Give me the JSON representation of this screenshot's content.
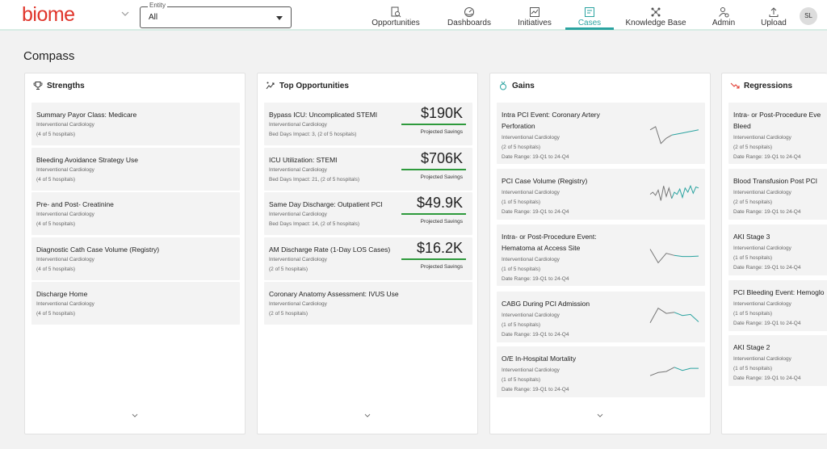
{
  "brand": {
    "logo_text": "biome",
    "color": "#e0352b",
    "accent": "#2aa3a0"
  },
  "entity": {
    "legend": "Entity",
    "value": "All"
  },
  "nav": [
    {
      "label": "Opportunities",
      "icon": "document-search-icon"
    },
    {
      "label": "Dashboards",
      "icon": "gauge-icon"
    },
    {
      "label": "Initiatives",
      "icon": "chart-icon"
    },
    {
      "label": "Cases",
      "icon": "case-icon",
      "active": true
    },
    {
      "label": "Knowledge Base",
      "icon": "network-icon"
    },
    {
      "label": "Admin",
      "icon": "user-gear-icon"
    },
    {
      "label": "Upload",
      "icon": "upload-icon"
    }
  ],
  "user": {
    "initials": "SL"
  },
  "page": {
    "title": "Compass"
  },
  "strengths": {
    "title": "Strengths",
    "items": [
      {
        "title": "Summary Payor Class: Medicare",
        "service": "Interventional Cardiology",
        "hospitals": "(4 of 5 hospitals)"
      },
      {
        "title": "Bleeding Avoidance Strategy Use",
        "service": "Interventional Cardiology",
        "hospitals": "(4 of 5 hospitals)"
      },
      {
        "title": "Pre- and Post- Creatinine",
        "service": "Interventional Cardiology",
        "hospitals": "(4 of 5 hospitals)"
      },
      {
        "title": "Diagnostic Cath Case Volume (Registry)",
        "service": "Interventional Cardiology",
        "hospitals": "(4 of 5 hospitals)"
      },
      {
        "title": "Discharge Home",
        "service": "Interventional Cardiology",
        "hospitals": "(4 of 5 hospitals)"
      }
    ]
  },
  "opportunities": {
    "title": "Top Opportunities",
    "items": [
      {
        "title": "Bypass ICU: Uncomplicated STEMI",
        "service": "Interventional Cardiology",
        "detail": "Bed Days Impact: 3, (2 of 5 hospitals)",
        "amount": "$190K",
        "amount_label": "Projected Savings"
      },
      {
        "title": "ICU Utilization: STEMI",
        "service": "Interventional Cardiology",
        "detail": "Bed Days Impact: 21, (2 of 5 hospitals)",
        "amount": "$706K",
        "amount_label": "Projected Savings"
      },
      {
        "title": "Same Day Discharge: Outpatient PCI",
        "service": "Interventional Cardiology",
        "detail": "Bed Days Impact: 14, (2 of 5 hospitals)",
        "amount": "$49.9K",
        "amount_label": "Projected Savings"
      },
      {
        "title": "AM Discharge Rate (1-Day LOS Cases)",
        "service": "Interventional Cardiology",
        "detail": "(2 of 5 hospitals)",
        "amount": "$16.2K",
        "amount_label": "Projected Savings"
      },
      {
        "title": "Coronary Anatomy Assessment: IVUS Use",
        "service": "Interventional Cardiology",
        "detail": "(2 of 5 hospitals)"
      }
    ]
  },
  "gains": {
    "title": "Gains",
    "items": [
      {
        "title": "Intra PCI Event: Coronary Artery",
        "title2": "Perforation",
        "service": "Interventional Cardiology",
        "hospitals": "(2 of 5 hospitals)",
        "date_range": "Date Range: 19-Q1 to 24-Q4",
        "trend": [
          0.3,
          0.15,
          0.95,
          0.7,
          0.55,
          0.5,
          0.45,
          0.4,
          0.35,
          0.3
        ]
      },
      {
        "title": "PCI Case Volume (Registry)",
        "service": "Interventional Cardiology",
        "hospitals": "(1 of 5 hospitals)",
        "date_range": "Date Range: 19-Q1 to 24-Q4",
        "trend": [
          0.6,
          0.5,
          0.65,
          0.4,
          0.9,
          0.2,
          0.7,
          0.3,
          0.8,
          0.5,
          0.6,
          0.35,
          0.75,
          0.3,
          0.5,
          0.2,
          0.55,
          0.25,
          0.3
        ]
      },
      {
        "title": "Intra- or Post-Procedure Event:",
        "title2": "Hematoma at Access Site",
        "service": "Interventional Cardiology",
        "hospitals": "(1 of 5 hospitals)",
        "date_range": "Date Range: 19-Q1 to 24-Q4",
        "trend": [
          0.25,
          0.9,
          0.45,
          0.55,
          0.6,
          0.6,
          0.58
        ]
      },
      {
        "title": "CABG During PCI Admission",
        "service": "Interventional Cardiology",
        "hospitals": "(1 of 5 hospitals)",
        "date_range": "Date Range: 19-Q1 to 24-Q4",
        "trend": [
          0.8,
          0.1,
          0.35,
          0.3,
          0.45,
          0.4,
          0.75
        ]
      },
      {
        "title": "O/E In-Hospital Mortality",
        "service": "Interventional Cardiology",
        "hospitals": "(1 of 5 hospitals)",
        "date_range": "Date Range: 19-Q1 to 24-Q4",
        "trend": [
          0.7,
          0.55,
          0.5,
          0.3,
          0.45,
          0.35,
          0.35
        ]
      }
    ]
  },
  "regressions": {
    "title": "Regressions",
    "items": [
      {
        "title": "Intra- or Post-Procedure Eve",
        "title2": "Bleed",
        "service": "Interventional Cardiology",
        "hospitals": "(2 of 5 hospitals)",
        "date_range": "Date Range: 19-Q1 to 24-Q4"
      },
      {
        "title": "Blood Transfusion Post PCI",
        "service": "Interventional Cardiology",
        "hospitals": "(2 of 5 hospitals)",
        "date_range": "Date Range: 19-Q1 to 24-Q4"
      },
      {
        "title": "AKI Stage 3",
        "service": "Interventional Cardiology",
        "hospitals": "(1 of 5 hospitals)",
        "date_range": "Date Range: 19-Q1 to 24-Q4"
      },
      {
        "title": "PCI Bleeding Event: Hemoglo",
        "service": "Interventional Cardiology",
        "hospitals": "(1 of 5 hospitals)",
        "date_range": "Date Range: 19-Q1 to 24-Q4"
      },
      {
        "title": "AKI Stage 2",
        "service": "Interventional Cardiology",
        "hospitals": "(1 of 5 hospitals)",
        "date_range": "Date Range: 19-Q1 to 24-Q4"
      }
    ]
  }
}
